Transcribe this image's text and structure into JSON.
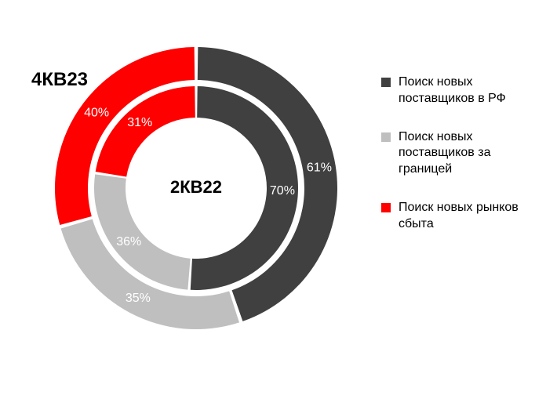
{
  "chart": {
    "type": "donut-double",
    "background_color": "#ffffff",
    "outer": {
      "title": "4КВ23",
      "title_fontsize": 24,
      "slices": [
        {
          "label_pct": "61%",
          "value": 61,
          "color": "#404040",
          "text_color": "#ffffff"
        },
        {
          "label_pct": "35%",
          "value": 35,
          "color": "#bfbfbf",
          "text_color": "#ffffff"
        },
        {
          "label_pct": "40%",
          "value": 40,
          "color": "#ff0000",
          "text_color": "#ffffff"
        }
      ]
    },
    "inner": {
      "title": "2КВ22",
      "title_fontsize": 22,
      "slices": [
        {
          "label_pct": "70%",
          "value": 70,
          "color": "#404040",
          "text_color": "#ffffff"
        },
        {
          "label_pct": "36%",
          "value": 36,
          "color": "#bfbfbf",
          "text_color": "#ffffff"
        },
        {
          "label_pct": "31%",
          "value": 31,
          "color": "#ff0000",
          "text_color": "#ffffff"
        }
      ]
    },
    "gap_color": "#ffffff",
    "gap_deg": 1.5,
    "radii": {
      "outer_outer": 180,
      "outer_inner": 138,
      "inner_outer": 130,
      "inner_inner": 90
    },
    "label_fontsize": 16
  },
  "legend": {
    "items": [
      {
        "color": "#404040",
        "text": "Поиск новых поставщиков в РФ"
      },
      {
        "color": "#bfbfbf",
        "text": "Поиск новых поставщиков за границей"
      },
      {
        "color": "#ff0000",
        "text": "Поиск новых рынков сбыта"
      }
    ],
    "fontsize": 16,
    "text_color": "#000000"
  }
}
